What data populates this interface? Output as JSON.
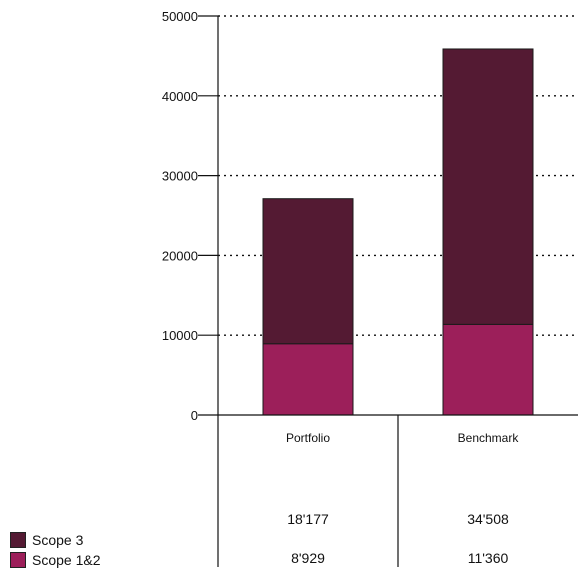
{
  "chart_data": {
    "type": "bar",
    "stacked": true,
    "categories": [
      "Portfolio",
      "Benchmark"
    ],
    "series": [
      {
        "name": "Scope 1&2",
        "values": [
          8929,
          11360
        ],
        "color": "#9c1f5a"
      },
      {
        "name": "Scope 3",
        "values": [
          18177,
          34508
        ],
        "color": "#541a33"
      }
    ],
    "yticks": [
      0,
      10000,
      20000,
      30000,
      40000,
      50000
    ],
    "ylim": [
      0,
      50000
    ],
    "grid": true,
    "legend_position": "bottom-left",
    "table_rows": [
      {
        "series": "Scope 3",
        "values": [
          "18'177",
          "34'508"
        ]
      },
      {
        "series": "Scope 1&2",
        "values": [
          "8'929",
          "11'360"
        ]
      }
    ]
  },
  "legend": [
    {
      "label": "Scope 3",
      "color": "#541a33"
    },
    {
      "label": "Scope 1&2",
      "color": "#9c1f5a"
    }
  ]
}
